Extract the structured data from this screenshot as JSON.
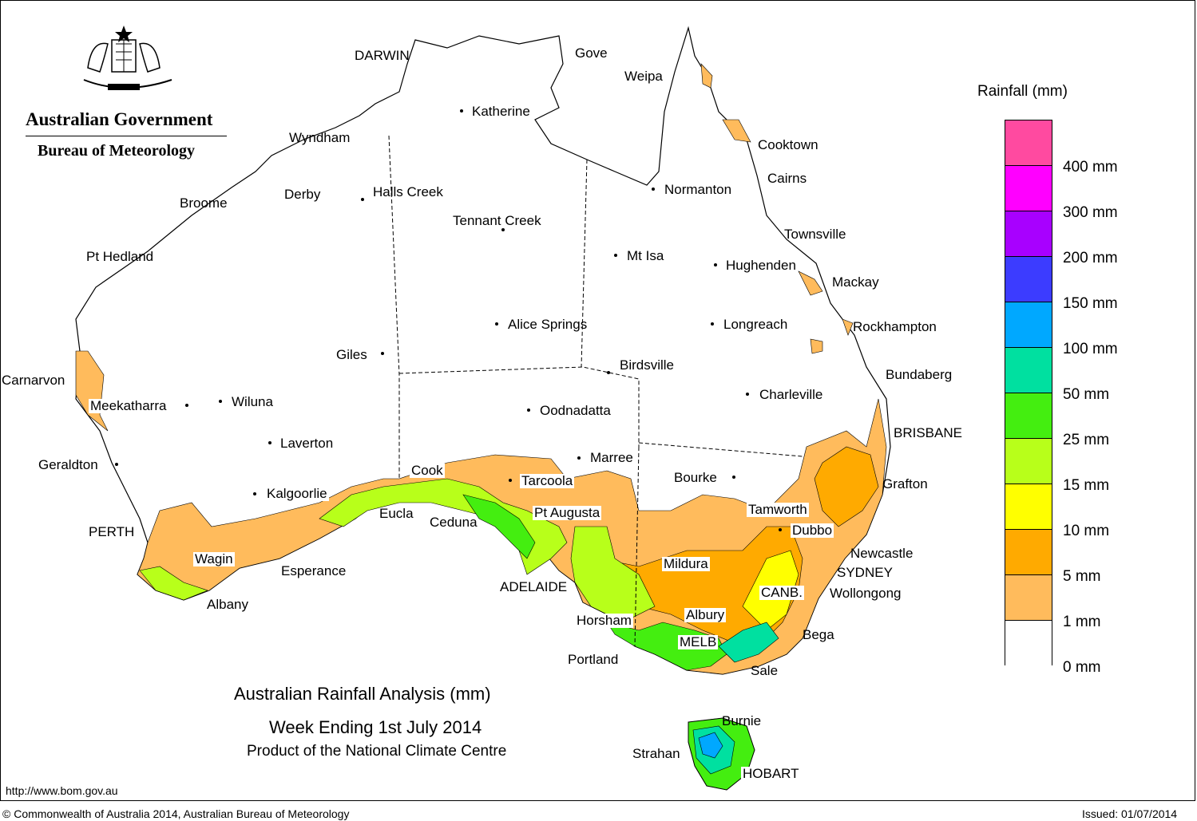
{
  "header": {
    "gov_title": "Australian Government",
    "gov_subtitle": "Bureau of Meteorology"
  },
  "title": {
    "line1": "Australian Rainfall Analysis (mm)",
    "line2": "Week Ending 1st July 2014",
    "line3": "Product of the National Climate Centre"
  },
  "legend": {
    "title": "Rainfall (mm)",
    "colors": [
      "#ff4aa0",
      "#ff00ff",
      "#a800ff",
      "#3c3cff",
      "#00a8ff",
      "#00e0a0",
      "#44ee10",
      "#b8ff1a",
      "#ffff00",
      "#ffaa00",
      "#ffbb5c",
      "#ffffff"
    ],
    "labels": [
      "400 mm",
      "300 mm",
      "200 mm",
      "150 mm",
      "100 mm",
      "50 mm",
      "25 mm",
      "15 mm",
      "10 mm",
      "5 mm",
      "1 mm",
      "0 mm"
    ]
  },
  "places": {
    "darwin": "DARWIN",
    "gove": "Gove",
    "weipa": "Weipa",
    "katherine": "Katherine",
    "wyndham": "Wyndham",
    "cooktown": "Cooktown",
    "cairns": "Cairns",
    "normanton": "Normanton",
    "derby": "Derby",
    "halls_creek": "Halls Creek",
    "broome": "Broome",
    "tennant_creek": "Tennant Creek",
    "townsville": "Townsville",
    "pt_hedland": "Pt Hedland",
    "mt_isa": "Mt Isa",
    "hughenden": "Hughenden",
    "mackay": "Mackay",
    "alice_springs": "Alice Springs",
    "longreach": "Longreach",
    "rockhampton": "Rockhampton",
    "giles": "Giles",
    "birdsville": "Birdsville",
    "bundaberg": "Bundaberg",
    "carnarvon": "Carnarvon",
    "charleville": "Charleville",
    "meekatharra": "Meekatharra",
    "wiluna": "Wiluna",
    "oodnadatta": "Oodnadatta",
    "brisbane": "BRISBANE",
    "laverton": "Laverton",
    "marree": "Marree",
    "geraldton": "Geraldton",
    "cook": "Cook",
    "tarcoola": "Tarcoola",
    "bourke": "Bourke",
    "grafton": "Grafton",
    "kalgoorlie": "Kalgoorlie",
    "eucla": "Eucla",
    "ceduna": "Ceduna",
    "pt_augusta": "Pt Augusta",
    "tamworth": "Tamworth",
    "perth": "PERTH",
    "dubbo": "Dubbo",
    "newcastle": "Newcastle",
    "wagin": "Wagin",
    "mildura": "Mildura",
    "sydney": "SYDNEY",
    "esperance": "Esperance",
    "adelaide": "ADELAIDE",
    "canb": "CANB.",
    "wollongong": "Wollongong",
    "albany": "Albany",
    "horsham": "Horsham",
    "albury": "Albury",
    "bega": "Bega",
    "melb": "MELB",
    "portland": "Portland",
    "sale": "Sale",
    "burnie": "Burnie",
    "strahan": "Strahan",
    "hobart": "HOBART"
  },
  "footer": {
    "url": "http://www.bom.gov.au",
    "copyright": "© Commonwealth of Australia 2014, Australian Bureau of Meteorology",
    "issued": "Issued: 01/07/2014"
  }
}
